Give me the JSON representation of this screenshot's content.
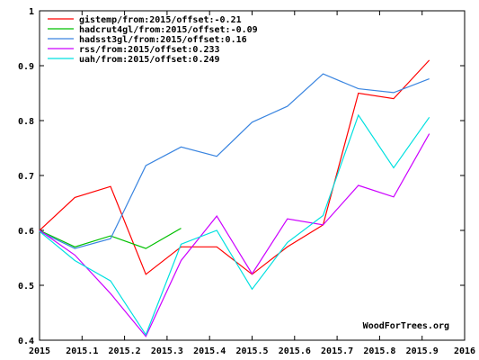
{
  "chart_data": {
    "type": "line",
    "title": "",
    "xlabel": "",
    "ylabel": "",
    "xlim": [
      2015,
      2016
    ],
    "ylim": [
      0.4,
      1.0
    ],
    "grid": false,
    "legend_position": "top-left",
    "x_ticks": [
      "2015",
      "2015.1",
      "2015.2",
      "2015.3",
      "2015.4",
      "2015.5",
      "2015.6",
      "2015.7",
      "2015.8",
      "2015.9",
      "2016"
    ],
    "y_ticks": [
      "0.4",
      "0.5",
      "0.6",
      "0.7",
      "0.8",
      "0.9",
      "1"
    ],
    "series": [
      {
        "name": "gistemp/from:2015/offset:-0.21",
        "color": "#ff0000",
        "points": [
          [
            2015.0,
            0.6
          ],
          [
            2015.083,
            0.66
          ],
          [
            2015.167,
            0.68
          ],
          [
            2015.25,
            0.52
          ],
          [
            2015.333,
            0.57
          ],
          [
            2015.417,
            0.57
          ],
          [
            2015.5,
            0.52
          ],
          [
            2015.583,
            0.57
          ],
          [
            2015.667,
            0.61
          ],
          [
            2015.75,
            0.85
          ],
          [
            2015.833,
            0.84
          ],
          [
            2015.917,
            0.91
          ]
        ]
      },
      {
        "name": "hadcrut4gl/from:2015/offset:-0.09",
        "color": "#00c000",
        "points": [
          [
            2015.0,
            0.6
          ],
          [
            2015.083,
            0.57
          ],
          [
            2015.167,
            0.59
          ],
          [
            2015.25,
            0.567
          ],
          [
            2015.333,
            0.604
          ]
        ]
      },
      {
        "name": "hadsst3gl/from:2015/offset:0.16",
        "color": "#3a85e0",
        "points": [
          [
            2015.0,
            0.598
          ],
          [
            2015.083,
            0.567
          ],
          [
            2015.167,
            0.585
          ],
          [
            2015.25,
            0.718
          ],
          [
            2015.333,
            0.752
          ],
          [
            2015.417,
            0.735
          ],
          [
            2015.5,
            0.797
          ],
          [
            2015.583,
            0.826
          ],
          [
            2015.667,
            0.885
          ],
          [
            2015.75,
            0.858
          ],
          [
            2015.833,
            0.851
          ],
          [
            2015.917,
            0.876
          ]
        ]
      },
      {
        "name": "rss/from:2015/offset:0.233",
        "color": "#cc00ff",
        "points": [
          [
            2015.0,
            0.6
          ],
          [
            2015.083,
            0.555
          ],
          [
            2015.167,
            0.485
          ],
          [
            2015.25,
            0.407
          ],
          [
            2015.333,
            0.545
          ],
          [
            2015.417,
            0.626
          ],
          [
            2015.5,
            0.521
          ],
          [
            2015.583,
            0.621
          ],
          [
            2015.667,
            0.61
          ],
          [
            2015.75,
            0.682
          ],
          [
            2015.833,
            0.661
          ],
          [
            2015.917,
            0.776
          ]
        ]
      },
      {
        "name": "uah/from:2015/offset:0.249",
        "color": "#00e0e0",
        "points": [
          [
            2015.0,
            0.598
          ],
          [
            2015.083,
            0.545
          ],
          [
            2015.167,
            0.508
          ],
          [
            2015.25,
            0.41
          ],
          [
            2015.333,
            0.575
          ],
          [
            2015.417,
            0.6
          ],
          [
            2015.5,
            0.493
          ],
          [
            2015.583,
            0.578
          ],
          [
            2015.667,
            0.627
          ],
          [
            2015.75,
            0.81
          ],
          [
            2015.833,
            0.714
          ],
          [
            2015.917,
            0.806
          ]
        ]
      }
    ],
    "watermark": "WoodForTrees.org"
  }
}
